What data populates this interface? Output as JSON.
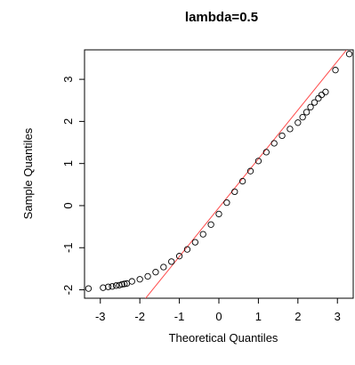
{
  "chart_data": {
    "type": "scatter",
    "title": "lambda=0.5",
    "xlabel": "Theoretical Quantiles",
    "ylabel": "Sample Quantiles",
    "xlim": [
      -3.4,
      3.4
    ],
    "ylim": [
      -2.2,
      3.7
    ],
    "x_ticks": [
      -3,
      -2,
      -1,
      0,
      1,
      2,
      3
    ],
    "x_tick_labels": [
      "-3",
      "-2",
      "-1",
      "0",
      "1",
      "2",
      "3"
    ],
    "y_ticks": [
      -2,
      -1,
      0,
      1,
      2,
      3
    ],
    "y_tick_labels": [
      "-2",
      "-1",
      "0",
      "1",
      "2",
      "3"
    ],
    "grid": false,
    "colors": {
      "points": "#000000",
      "reference_line": "#ff4b4b"
    },
    "reference_line": {
      "intercept": -0.05,
      "slope": 1.16
    },
    "points": [
      [
        -3.3,
        -1.97
      ],
      [
        -2.93,
        -1.95
      ],
      [
        -2.8,
        -1.93
      ],
      [
        -2.7,
        -1.92
      ],
      [
        -2.6,
        -1.9
      ],
      [
        -2.52,
        -1.89
      ],
      [
        -2.45,
        -1.87
      ],
      [
        -2.39,
        -1.86
      ],
      [
        -2.33,
        -1.85
      ],
      [
        -2.2,
        -1.8
      ],
      [
        -2.0,
        -1.75
      ],
      [
        -1.8,
        -1.68
      ],
      [
        -1.6,
        -1.58
      ],
      [
        -1.4,
        -1.46
      ],
      [
        -1.2,
        -1.33
      ],
      [
        -1.0,
        -1.2
      ],
      [
        -0.8,
        -1.04
      ],
      [
        -0.6,
        -0.87
      ],
      [
        -0.4,
        -0.68
      ],
      [
        -0.2,
        -0.45
      ],
      [
        0.0,
        -0.2
      ],
      [
        0.2,
        0.07
      ],
      [
        0.4,
        0.33
      ],
      [
        0.6,
        0.58
      ],
      [
        0.8,
        0.82
      ],
      [
        1.0,
        1.06
      ],
      [
        1.2,
        1.27
      ],
      [
        1.4,
        1.48
      ],
      [
        1.6,
        1.66
      ],
      [
        1.8,
        1.82
      ],
      [
        2.0,
        1.97
      ],
      [
        2.12,
        2.1
      ],
      [
        2.22,
        2.22
      ],
      [
        2.32,
        2.34
      ],
      [
        2.42,
        2.45
      ],
      [
        2.52,
        2.55
      ],
      [
        2.6,
        2.63
      ],
      [
        2.7,
        2.7
      ],
      [
        2.95,
        3.22
      ],
      [
        3.3,
        3.6
      ]
    ]
  }
}
